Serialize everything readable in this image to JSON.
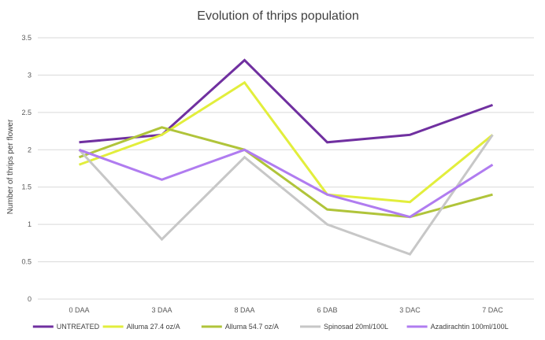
{
  "chart_data": {
    "type": "line",
    "title": "Evolution of thrips population",
    "xlabel": "",
    "ylabel": "Number of thrips per flower",
    "categories": [
      "0 DAA",
      "3 DAA",
      "8 DAA",
      "6 DAB",
      "3 DAC",
      "7 DAC"
    ],
    "ylim": [
      0,
      3.5
    ],
    "yticks": [
      "0",
      "0.5",
      "1",
      "1.5",
      "2",
      "2.5",
      "3",
      "3.5"
    ],
    "grid": true,
    "legend_position": "bottom",
    "series": [
      {
        "name": "UNTREATED",
        "color": "#7030A0",
        "values": [
          2.1,
          2.2,
          3.2,
          2.1,
          2.2,
          2.6
        ]
      },
      {
        "name": "Alluma 27.4 oz/A",
        "color": "#E2EE3C",
        "values": [
          1.8,
          2.2,
          2.9,
          1.4,
          1.3,
          2.2
        ]
      },
      {
        "name": "Alluma 54.7 oz/A",
        "color": "#B0C43A",
        "values": [
          1.9,
          2.3,
          2.0,
          1.2,
          1.1,
          1.4
        ]
      },
      {
        "name": "Spinosad 20ml/100L",
        "color": "#C7C7C7",
        "values": [
          2.0,
          0.8,
          1.9,
          1.0,
          0.6,
          2.2
        ]
      },
      {
        "name": "Azadirachtin 100ml/100L",
        "color": "#B07CF0",
        "values": [
          2.0,
          1.6,
          2.0,
          1.4,
          1.1,
          1.8
        ]
      }
    ]
  }
}
